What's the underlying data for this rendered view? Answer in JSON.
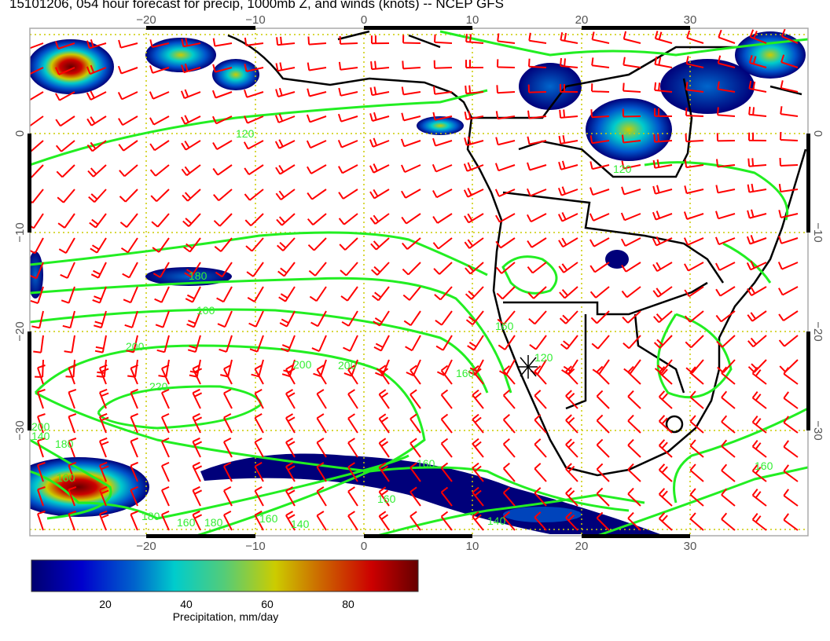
{
  "title": "15101206, 054 hour forecast for precip, 1000mb Z, and winds (knots) -- NCEP GFS",
  "map": {
    "lon_ticks": [
      "−20",
      "−10",
      "0",
      "10",
      "20",
      "30"
    ],
    "lat_ticks": [
      "0",
      "−10",
      "−20",
      "−30"
    ],
    "lon_range": [
      -30.7,
      40.8
    ],
    "lat_range": [
      -40.7,
      10.6
    ],
    "contour_labels": [
      "120",
      "100",
      "180",
      "160",
      "200",
      "200",
      "220",
      "200",
      "180",
      "160",
      "140",
      "120",
      "160",
      "120",
      "160",
      "160",
      "140",
      "160",
      "180",
      "160",
      "200",
      "180",
      "160",
      "140"
    ],
    "colors": {
      "coast": "#000000",
      "contours": "#22ee22",
      "wind_barbs": "#ff0000",
      "grid": "#cccc00"
    },
    "marker": "station-asterisk"
  },
  "colorbar": {
    "ticks": [
      "20",
      "40",
      "60",
      "80"
    ],
    "label": "Precipitation, mm/day",
    "range": [
      0,
      98
    ],
    "colors": [
      "#00006e",
      "#0000cc",
      "#0066cc",
      "#00cccc",
      "#66cc66",
      "#cccc00",
      "#cc6600",
      "#cc0000",
      "#660000"
    ]
  }
}
